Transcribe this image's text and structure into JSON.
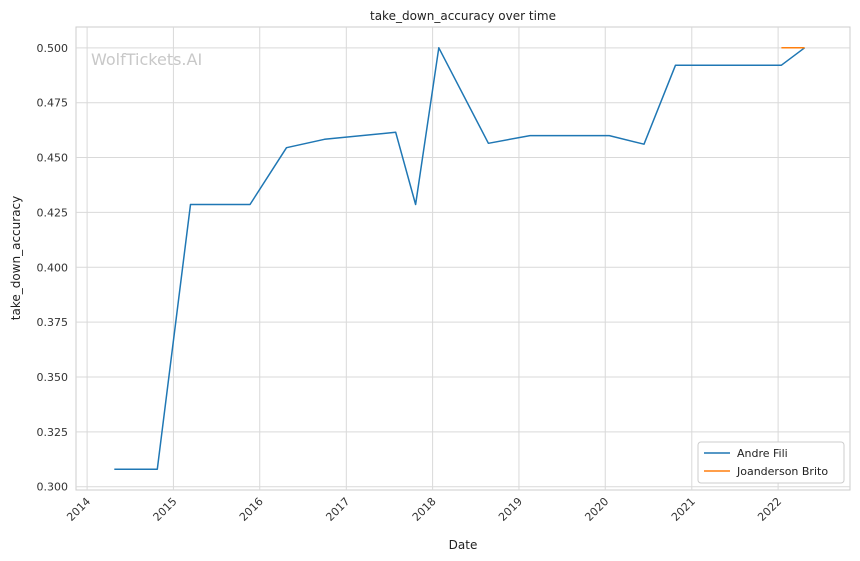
{
  "watermark": "WolfTickets.AI",
  "chart_data": {
    "type": "line",
    "title": "take_down_accuracy over time",
    "xlabel": "Date",
    "ylabel": "take_down_accuracy",
    "x_ticks": [
      "2014",
      "2015",
      "2016",
      "2017",
      "2018",
      "2019",
      "2020",
      "2021",
      "2022"
    ],
    "y_ticks": [
      "0.300",
      "0.325",
      "0.350",
      "0.375",
      "0.400",
      "0.425",
      "0.450",
      "0.475",
      "0.500"
    ],
    "xlim": [
      "2013-11-15",
      "2022-11-01"
    ],
    "ylim": [
      0.2985,
      0.5095
    ],
    "grid": true,
    "legend_position": "bottom-right",
    "series": [
      {
        "name": "Andre Fili",
        "color": "#1f77b4",
        "points": [
          {
            "x": "2014-04-26",
            "y": 0.308
          },
          {
            "x": "2014-10-25",
            "y": 0.308
          },
          {
            "x": "2015-03-14",
            "y": 0.4286
          },
          {
            "x": "2015-11-21",
            "y": 0.4286
          },
          {
            "x": "2016-04-23",
            "y": 0.4545
          },
          {
            "x": "2016-10-01",
            "y": 0.4583
          },
          {
            "x": "2017-07-29",
            "y": 0.4615
          },
          {
            "x": "2017-10-21",
            "y": 0.4286
          },
          {
            "x": "2018-01-27",
            "y": 0.5
          },
          {
            "x": "2018-08-25",
            "y": 0.4565
          },
          {
            "x": "2019-02-17",
            "y": 0.46
          },
          {
            "x": "2020-01-18",
            "y": 0.46
          },
          {
            "x": "2020-06-13",
            "y": 0.4561
          },
          {
            "x": "2020-10-24",
            "y": 0.4921
          },
          {
            "x": "2022-01-15",
            "y": 0.4921
          },
          {
            "x": "2022-04-23",
            "y": 0.5
          }
        ]
      },
      {
        "name": "Joanderson Brito",
        "color": "#ff7f0e",
        "points": [
          {
            "x": "2022-01-15",
            "y": 0.5
          },
          {
            "x": "2022-04-23",
            "y": 0.5
          }
        ]
      }
    ]
  }
}
